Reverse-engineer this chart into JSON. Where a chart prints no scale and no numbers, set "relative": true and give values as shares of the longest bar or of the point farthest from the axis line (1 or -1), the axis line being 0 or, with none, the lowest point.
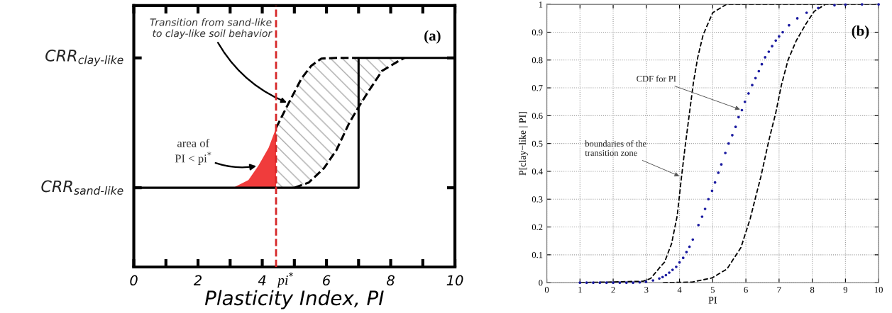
{
  "chart_data": [
    {
      "type": "line",
      "relative": true,
      "xlabel": "Plasticity Index, PI",
      "xlim": [
        0,
        10
      ],
      "xticks": [
        0,
        {
          "value": 1,
          "label": null
        },
        2,
        {
          "value": 3,
          "label": null
        },
        4,
        {
          "value": 5,
          "label": null
        },
        6,
        {
          "value": 7,
          "label": null
        },
        8,
        {
          "value": 9,
          "label": null
        },
        10
      ],
      "grid": false,
      "series": [
        {
          "type": "line",
          "color": "#000000",
          "line_style": "solid",
          "x": [
            0,
            7,
            7,
            10
          ],
          "values": [
            0.379,
            0.379,
            1,
            1
          ]
        },
        {
          "type": "line",
          "color": "#000000",
          "line_style": "dashed",
          "x": [
            4.43,
            4.82,
            5.22,
            5.53,
            5.84,
            6.3,
            7.0
          ],
          "values": [
            0.665,
            0.783,
            0.901,
            0.963,
            0.997,
            1,
            1
          ]
        },
        {
          "type": "line",
          "color": "#000000",
          "line_style": "dashed",
          "x": [
            5.0,
            5.45,
            5.92,
            6.31,
            6.71,
            7.02,
            7.33,
            7.73,
            8.2,
            8.43
          ],
          "values": [
            0.379,
            0.404,
            0.472,
            0.559,
            0.689,
            0.77,
            0.845,
            0.938,
            0.981,
            1.0
          ]
        },
        {
          "type": "area",
          "color": "#f03c3c",
          "x": [
            3.1,
            3.57,
            3.88,
            4.2,
            4.43
          ],
          "values": [
            0.379,
            0.416,
            0.484,
            0.571,
            0.665
          ]
        }
      ],
      "ref_lines": [
        {
          "axis": "x",
          "value": 4.43,
          "label": "pi$^{*}$",
          "color": "#d62728",
          "line_style": "dashed"
        }
      ],
      "annotations": [
        "(a)",
        {
          "text": "Transition from sand-like\nto clay-like soil behavior",
          "x": 4.82,
          "y": 0.783
        },
        {
          "text": "area of\nPI < pi$^{*}$",
          "x": 3.88,
          "y": 0.484
        },
        "CRR$_{clay-like}$",
        "CRR$_{sand-like}$"
      ]
    },
    {
      "type": "line",
      "xlabel": "PI",
      "ylabel": "P[clay−like | PI]",
      "xlim": [
        0,
        10
      ],
      "ylim": [
        0,
        1
      ],
      "xticks": [
        0,
        1,
        2,
        3,
        4,
        5,
        6,
        7,
        8,
        9,
        10
      ],
      "yticks": [
        0,
        0.1,
        0.2,
        0.3,
        0.4,
        0.5,
        0.6,
        0.7,
        0.8,
        0.9,
        1
      ],
      "grid": true,
      "series": [
        {
          "type": "line",
          "color": "#000000",
          "line_style": "dashed",
          "x": [
            1,
            2.9,
            3.13,
            3.43,
            3.55,
            3.76,
            3.93,
            4.05,
            4.17,
            4.3,
            4.42,
            4.55,
            4.71,
            5.0,
            5.41,
            10
          ],
          "values": [
            0,
            0.005,
            0.015,
            0.058,
            0.074,
            0.14,
            0.24,
            0.37,
            0.49,
            0.61,
            0.72,
            0.81,
            0.89,
            0.97,
            1.0,
            1.0
          ]
        },
        {
          "type": "line",
          "color": "#000000",
          "line_style": "dashed",
          "x": [
            3.5,
            4.38,
            4.98,
            5.43,
            5.85,
            6.13,
            6.32,
            6.45,
            6.69,
            6.9,
            7.07,
            7.27,
            7.52,
            7.81,
            8.06,
            8.39
          ],
          "values": [
            0,
            0.002,
            0.017,
            0.049,
            0.126,
            0.23,
            0.32,
            0.38,
            0.51,
            0.61,
            0.71,
            0.8,
            0.87,
            0.93,
            0.975,
            1.0
          ]
        },
        {
          "type": "scatter",
          "color": "#1a1aa0",
          "marker": "circle",
          "x": [
            1.0,
            1.2,
            1.4,
            1.6,
            1.8,
            2.0,
            2.2,
            2.4,
            2.6,
            2.8,
            2.99,
            3.2,
            3.39,
            3.49,
            3.59,
            3.69,
            3.79,
            3.9,
            4.0,
            4.11,
            4.21,
            4.3,
            4.4,
            4.57,
            4.68,
            4.77,
            4.87,
            4.98,
            5.07,
            5.17,
            5.26,
            5.38,
            5.48,
            5.59,
            5.69,
            5.78,
            5.88,
            5.97,
            6.08,
            6.19,
            6.29,
            6.39,
            6.48,
            6.58,
            6.69,
            6.79,
            6.9,
            7.0,
            7.11,
            7.3,
            7.55,
            7.83,
            8.18,
            8.67,
            9.0,
            9.5,
            10.0
          ],
          "values": [
            0,
            0,
            0,
            0,
            0,
            0,
            0,
            0,
            0,
            0.001,
            0.003,
            0.008,
            0.015,
            0.02,
            0.027,
            0.036,
            0.046,
            0.057,
            0.073,
            0.089,
            0.11,
            0.129,
            0.155,
            0.207,
            0.237,
            0.265,
            0.3,
            0.33,
            0.36,
            0.395,
            0.425,
            0.466,
            0.5,
            0.53,
            0.56,
            0.595,
            0.62,
            0.65,
            0.68,
            0.71,
            0.735,
            0.76,
            0.785,
            0.81,
            0.83,
            0.85,
            0.87,
            0.885,
            0.9,
            0.925,
            0.95,
            0.97,
            0.987,
            0.997,
            0.999,
            1.0,
            1.0
          ]
        }
      ],
      "annotations": [
        "(b)",
        {
          "text": "CDF for PI",
          "x": 5.88,
          "y": 0.62
        },
        {
          "text": "boundaries of the\ntransition zone",
          "x": 4.05,
          "y": 0.38
        }
      ]
    }
  ]
}
